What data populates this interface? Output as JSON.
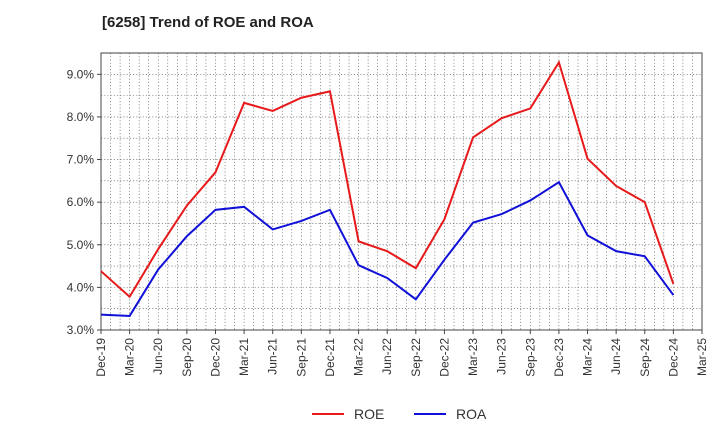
{
  "chart_data": {
    "type": "line",
    "title": "[6258]  Trend of ROE and ROA",
    "xlabel": "",
    "ylabel": "",
    "categories": [
      "Dec-19",
      "Mar-20",
      "Jun-20",
      "Sep-20",
      "Dec-20",
      "Mar-21",
      "Jun-21",
      "Sep-21",
      "Dec-21",
      "Mar-22",
      "Jun-22",
      "Sep-22",
      "Dec-22",
      "Mar-23",
      "Jun-23",
      "Sep-23",
      "Dec-23",
      "Mar-24",
      "Jun-24",
      "Sep-24",
      "Dec-24",
      "Mar-25"
    ],
    "ylim": [
      3.0,
      9.5
    ],
    "yticks": [
      "3.0%",
      "4.0%",
      "5.0%",
      "6.0%",
      "7.0%",
      "8.0%",
      "9.0%"
    ],
    "grid": true,
    "legend_position": "bottom",
    "series": [
      {
        "name": "ROE",
        "color": "#e8191a",
        "values": [
          4.38,
          3.78,
          4.9,
          5.92,
          6.7,
          8.33,
          8.14,
          8.45,
          8.6,
          5.08,
          4.85,
          4.45,
          5.6,
          7.52,
          7.97,
          8.2,
          9.28,
          7.02,
          6.38,
          6.0,
          4.08,
          null
        ]
      },
      {
        "name": "ROA",
        "color": "#1010d8",
        "values": [
          3.36,
          3.33,
          4.42,
          5.2,
          5.82,
          5.89,
          5.36,
          5.56,
          5.82,
          4.52,
          4.22,
          3.72,
          4.65,
          5.52,
          5.72,
          6.04,
          6.47,
          5.22,
          4.85,
          4.73,
          3.82,
          null
        ]
      }
    ]
  }
}
